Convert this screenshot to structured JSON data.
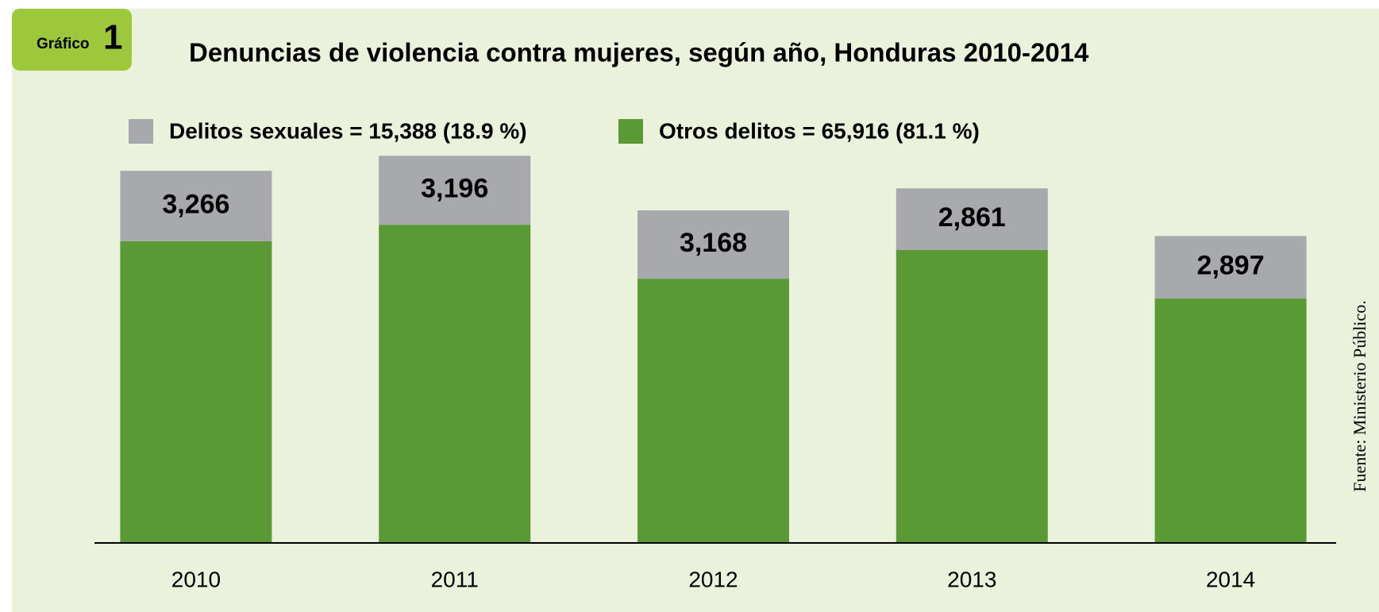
{
  "badge": {
    "label": "Gráfico",
    "number": "1"
  },
  "source": "Fuente: Ministerio Público.",
  "chart_data": {
    "type": "stacked-bar",
    "title": "Denuncias de violencia contra mujeres, según año, Honduras 2010-2014",
    "categories": [
      "2010",
      "2011",
      "2012",
      "2013",
      "2014"
    ],
    "series": [
      {
        "name": "Delitos sexuales = 15,388 (18.9 %)",
        "color": "#a7a9ac",
        "values": [
          3266,
          3196,
          3168,
          2861,
          2897
        ],
        "value_labels": [
          "3,266",
          "3,196",
          "3,168",
          "2,861",
          "2,897"
        ]
      },
      {
        "name": "Otros delitos = 65,916 (81.1 %)",
        "color": "#5a9a35",
        "values": [
          13990,
          14756,
          12254,
          13582,
          11334
        ]
      }
    ],
    "stack_order": [
      1,
      0
    ],
    "ylim": [
      0,
      18000
    ]
  }
}
